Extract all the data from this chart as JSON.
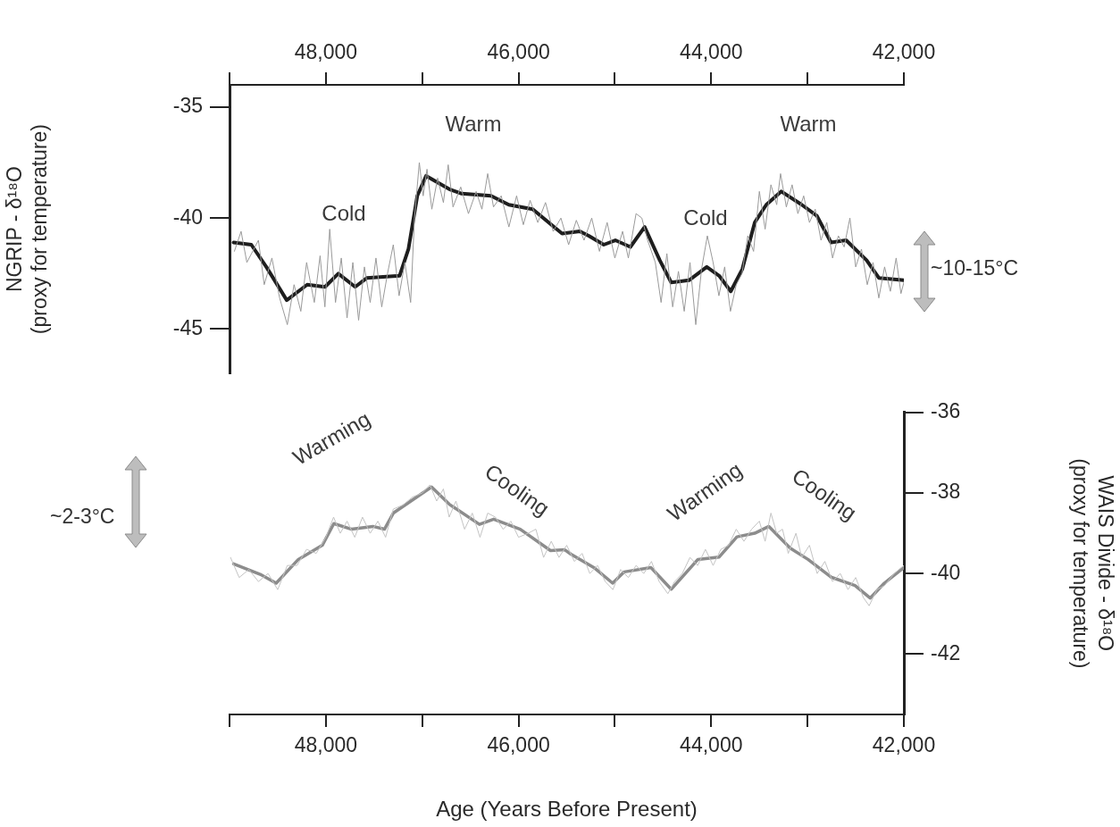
{
  "chart_data": [
    {
      "type": "line",
      "ylabel": "NGRIP - δ¹⁸O\n(proxy for temperature)",
      "xlim": [
        49000,
        42000
      ],
      "xticks": [
        {
          "value": 49000,
          "label": null
        },
        {
          "value": 48000,
          "label": "48,000"
        },
        {
          "value": 47000,
          "label": null
        },
        {
          "value": 46000,
          "label": "46,000"
        },
        {
          "value": 45000,
          "label": null
        },
        {
          "value": 44000,
          "label": "44,000"
        },
        {
          "value": 43000,
          "label": null
        },
        {
          "value": 42000,
          "label": "42,000"
        }
      ],
      "ylim": [
        -47,
        -34
      ],
      "yticks": [
        -45,
        -40,
        -35
      ],
      "grid": false,
      "legend": false,
      "series": [
        {
          "color": "#9a9a9a",
          "x": [
            48950,
            48880,
            48820,
            48700,
            48640,
            48560,
            48480,
            48400,
            48330,
            48260,
            48200,
            48120,
            48060,
            48010,
            47960,
            47900,
            47840,
            47780,
            47720,
            47660,
            47600,
            47540,
            47480,
            47420,
            47360,
            47300,
            47240,
            47180,
            47120,
            47080,
            47030,
            46990,
            46950,
            46900,
            46840,
            46780,
            46730,
            46680,
            46600,
            46520,
            46440,
            46380,
            46320,
            46260,
            46180,
            46100,
            46020,
            45950,
            45880,
            45800,
            45720,
            45640,
            45560,
            45480,
            45400,
            45320,
            45240,
            45160,
            45080,
            45000,
            44920,
            44860,
            44780,
            44720,
            44660,
            44580,
            44520,
            44460,
            44400,
            44340,
            44280,
            44220,
            44160,
            44100,
            44040,
            43980,
            43920,
            43860,
            43800,
            43740,
            43680,
            43620,
            43560,
            43500,
            43440,
            43380,
            43320,
            43280,
            43220,
            43160,
            43100,
            43040,
            42980,
            42920,
            42860,
            42800,
            42740,
            42680,
            42620,
            42560,
            42500,
            42440,
            42380,
            42320,
            42260,
            42200,
            42140,
            42080,
            42030,
            42000
          ],
          "values": [
            -41.5,
            -40.6,
            -42.0,
            -41.0,
            -43.0,
            -41.8,
            -43.6,
            -44.8,
            -43.0,
            -44.2,
            -42.0,
            -43.8,
            -41.7,
            -44.0,
            -40.5,
            -43.8,
            -41.8,
            -44.5,
            -42.0,
            -44.6,
            -42.2,
            -43.8,
            -41.8,
            -44.0,
            -42.5,
            -41.2,
            -43.5,
            -42.0,
            -43.8,
            -40.0,
            -37.5,
            -39.0,
            -37.8,
            -39.6,
            -38.2,
            -39.3,
            -37.6,
            -39.5,
            -38.6,
            -39.8,
            -38.8,
            -39.6,
            -38.0,
            -39.5,
            -39.0,
            -40.4,
            -39.0,
            -40.3,
            -39.2,
            -40.2,
            -39.3,
            -40.6,
            -40.0,
            -41.2,
            -40.1,
            -41.0,
            -40.0,
            -41.5,
            -40.2,
            -41.8,
            -40.6,
            -41.8,
            -39.8,
            -40.0,
            -41.0,
            -42.0,
            -43.8,
            -41.6,
            -44.0,
            -42.4,
            -44.2,
            -42.0,
            -44.8,
            -42.3,
            -40.8,
            -42.0,
            -43.5,
            -42.2,
            -44.2,
            -43.0,
            -42.5,
            -40.8,
            -41.5,
            -38.8,
            -40.5,
            -38.5,
            -39.4,
            -38.0,
            -39.5,
            -38.5,
            -39.8,
            -39.0,
            -40.2,
            -39.6,
            -41.0,
            -40.2,
            -41.8,
            -40.8,
            -41.3,
            -40.0,
            -42.2,
            -41.4,
            -43.0,
            -42.0,
            -43.6,
            -42.2,
            -43.3,
            -41.8,
            -43.4,
            -42.9
          ]
        },
        {
          "color": "#1e1e1e",
          "x": [
            48958,
            48774,
            48618,
            48406,
            48194,
            48009,
            47871,
            47696,
            47576,
            47235,
            47143,
            47051,
            46959,
            46719,
            46590,
            46286,
            46101,
            45853,
            45548,
            45364,
            45272,
            45115,
            44995,
            44839,
            44691,
            44534,
            44415,
            44230,
            44046,
            43917,
            43797,
            43677,
            43548,
            43428,
            43272,
            43060,
            42903,
            42756,
            42599,
            42387,
            42258,
            42000
          ],
          "values": [
            -41.1,
            -41.2,
            -42.2,
            -43.7,
            -43.0,
            -43.1,
            -42.5,
            -43.1,
            -42.7,
            -42.6,
            -41.4,
            -39.0,
            -38.1,
            -38.7,
            -38.9,
            -39.0,
            -39.4,
            -39.6,
            -40.7,
            -40.6,
            -40.8,
            -41.2,
            -41.0,
            -41.3,
            -40.4,
            -41.9,
            -42.9,
            -42.8,
            -42.2,
            -42.6,
            -43.3,
            -42.3,
            -40.2,
            -39.4,
            -38.8,
            -39.4,
            -39.9,
            -41.1,
            -41.0,
            -41.9,
            -42.7,
            -42.8
          ]
        }
      ],
      "annotations": [
        "Warm",
        "Cold",
        "Cold",
        "Warm",
        "~10-15°C"
      ]
    },
    {
      "type": "line",
      "xlabel": "Age (Years Before Present)",
      "ylabel": "WAIS Divide - δ¹⁸O\n(proxy for temperature)",
      "xlim": [
        49000,
        42000
      ],
      "xticks": [
        {
          "value": 49000,
          "label": null
        },
        {
          "value": 48000,
          "label": "48,000"
        },
        {
          "value": 47000,
          "label": null
        },
        {
          "value": 46000,
          "label": "46,000"
        },
        {
          "value": 45000,
          "label": null
        },
        {
          "value": 44000,
          "label": "44,000"
        },
        {
          "value": 43000,
          "label": null
        },
        {
          "value": 42000,
          "label": "42,000"
        }
      ],
      "ylim": [
        -43.5,
        -36
      ],
      "yticks": [
        -42,
        -40,
        -38,
        -36
      ],
      "grid": false,
      "legend": false,
      "series": [
        {
          "color": "#c4c4c4",
          "x": [
            48990,
            48900,
            48800,
            48700,
            48600,
            48500,
            48400,
            48300,
            48200,
            48100,
            48000,
            47920,
            47850,
            47780,
            47700,
            47620,
            47540,
            47460,
            47380,
            47300,
            47200,
            47100,
            47000,
            46920,
            46850,
            46780,
            46720,
            46650,
            46560,
            46480,
            46400,
            46320,
            46240,
            46160,
            46080,
            46000,
            45900,
            45820,
            45740,
            45660,
            45580,
            45500,
            45420,
            45340,
            45260,
            45180,
            45100,
            45020,
            44940,
            44860,
            44780,
            44700,
            44620,
            44540,
            44450,
            44380,
            44300,
            44220,
            44140,
            44060,
            43980,
            43900,
            43820,
            43740,
            43660,
            43580,
            43500,
            43440,
            43380,
            43320,
            43260,
            43200,
            43120,
            43060,
            42980,
            42900,
            42820,
            42740,
            42660,
            42580,
            42500,
            42420,
            42360,
            42280,
            42200,
            42100,
            42000
          ],
          "values": [
            -39.6,
            -40.1,
            -39.9,
            -40.2,
            -40.0,
            -40.4,
            -39.8,
            -39.8,
            -39.4,
            -39.5,
            -39.1,
            -38.6,
            -39.0,
            -38.7,
            -39.1,
            -38.6,
            -39.0,
            -38.7,
            -39.1,
            -38.4,
            -38.3,
            -38.1,
            -38.0,
            -37.8,
            -38.2,
            -37.9,
            -38.6,
            -38.2,
            -38.9,
            -38.5,
            -39.1,
            -38.5,
            -38.6,
            -38.9,
            -38.7,
            -39.1,
            -39.0,
            -38.9,
            -39.6,
            -39.2,
            -39.6,
            -39.3,
            -39.7,
            -39.5,
            -40.0,
            -39.8,
            -40.2,
            -40.4,
            -39.9,
            -40.1,
            -39.8,
            -40.0,
            -39.7,
            -40.2,
            -40.5,
            -40.2,
            -40.0,
            -39.6,
            -39.8,
            -39.4,
            -39.8,
            -39.4,
            -39.3,
            -38.9,
            -39.2,
            -38.9,
            -38.7,
            -39.2,
            -38.5,
            -39.0,
            -38.9,
            -39.5,
            -39.0,
            -39.6,
            -39.3,
            -40.0,
            -39.7,
            -40.2,
            -40.0,
            -40.4,
            -40.1,
            -40.6,
            -40.8,
            -40.4,
            -40.3,
            -40.0,
            -39.8
          ]
        },
        {
          "color": "#8c8c8c",
          "x": [
            48958,
            48682,
            48516,
            48286,
            48037,
            47917,
            47733,
            47512,
            47392,
            47300,
            46903,
            46719,
            46406,
            46258,
            45982,
            45668,
            45521,
            45456,
            45207,
            45023,
            44903,
            44627,
            44415,
            44138,
            43917,
            43733,
            43548,
            43401,
            43180,
            42995,
            42756,
            42507,
            42350,
            42203,
            42000
          ],
          "values": [
            -39.76,
            -40.02,
            -40.24,
            -39.65,
            -39.3,
            -38.76,
            -38.9,
            -38.83,
            -38.9,
            -38.5,
            -37.85,
            -38.28,
            -38.78,
            -38.65,
            -38.9,
            -39.43,
            -39.41,
            -39.52,
            -39.87,
            -40.24,
            -39.96,
            -39.85,
            -40.39,
            -39.65,
            -39.59,
            -39.09,
            -39.0,
            -38.83,
            -39.37,
            -39.65,
            -40.09,
            -40.3,
            -40.61,
            -40.24,
            -39.85
          ]
        }
      ],
      "annotations": [
        "Warming",
        "Cooling",
        "Warming",
        "Cooling",
        "~2-3°C"
      ]
    }
  ]
}
